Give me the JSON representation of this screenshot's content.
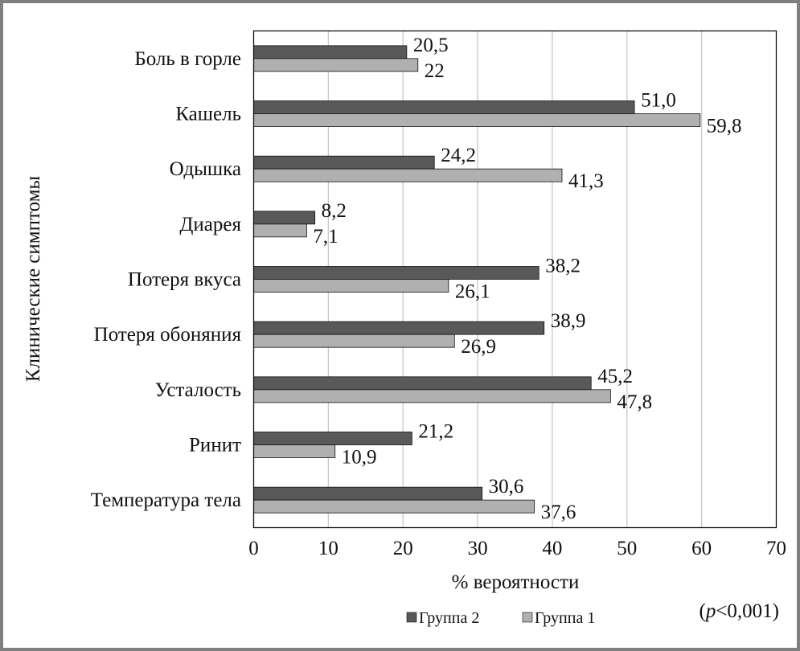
{
  "chart_data": {
    "type": "bar",
    "orientation": "horizontal",
    "categories": [
      "Боль в горле",
      "Кашель",
      "Одышка",
      "Диарея",
      "Потеря вкуса",
      "Потеря обоняния",
      "Усталость",
      "Ринит",
      "Температура тела"
    ],
    "series": [
      {
        "name": "Группа 2",
        "color": "#595959",
        "values": [
          20.5,
          51.0,
          24.2,
          8.2,
          38.2,
          38.9,
          45.2,
          21.2,
          30.6
        ],
        "labels": [
          "20,5",
          "51,0",
          "24,2",
          "8,2",
          "38,2",
          "38,9",
          "45,2",
          "21,2",
          "30,6"
        ]
      },
      {
        "name": "Группа 1",
        "color": "#b0b0b2",
        "values": [
          22,
          59.8,
          41.3,
          7.1,
          26.1,
          26.9,
          47.8,
          10.9,
          37.6
        ],
        "labels": [
          "22",
          "59,8",
          "41,3",
          "7,1",
          "26,1",
          "26,9",
          "47,8",
          "10,9",
          "37,6"
        ]
      }
    ],
    "xlabel": "% вероятности",
    "ylabel": "Клинические симптомы",
    "xlim": [
      0,
      70
    ],
    "xticks": [
      0,
      10,
      20,
      30,
      40,
      50,
      60,
      70
    ],
    "grid": "vertical",
    "legend": "bottom",
    "annotation": {
      "italic": "p",
      "rest": "<0,001)",
      "open": "("
    }
  }
}
